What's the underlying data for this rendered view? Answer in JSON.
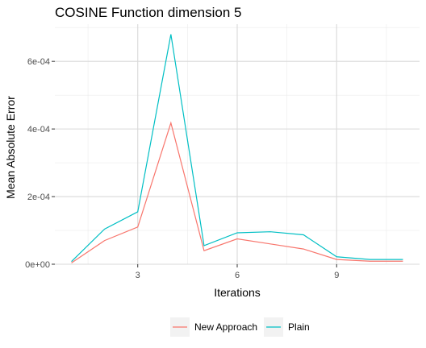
{
  "chart_data": {
    "type": "line",
    "title": "COSINE Function dimension 5",
    "xlabel": "Iterations",
    "ylabel": "Mean Absolute Error",
    "x": [
      1,
      2,
      3,
      4,
      5,
      6,
      7,
      8,
      9,
      10,
      11
    ],
    "xlim": [
      0.5,
      11.5
    ],
    "ylim": [
      0,
      0.00071
    ],
    "x_ticks": [
      3,
      6,
      9
    ],
    "x_tick_labels": [
      "3",
      "6",
      "9"
    ],
    "y_ticks": [
      0,
      0.0002,
      0.0004,
      0.0006
    ],
    "y_tick_labels": [
      "0e+00",
      "2e-04",
      "4e-04",
      "6e-04"
    ],
    "grid": true,
    "legend_position": "bottom",
    "series": [
      {
        "name": "New Approach",
        "color": "#F8766D",
        "values": [
          4e-06,
          7e-05,
          0.00011,
          0.000418,
          4e-05,
          7.5e-05,
          6e-05,
          4.5e-05,
          1.4e-05,
          9e-06,
          9e-06
        ]
      },
      {
        "name": "Plain",
        "color": "#00BFC4",
        "values": [
          8e-06,
          0.000104,
          0.000155,
          0.00068,
          5.5e-05,
          9.3e-05,
          9.6e-05,
          8.7e-05,
          2.2e-05,
          1.4e-05,
          1.4e-05
        ]
      }
    ]
  }
}
